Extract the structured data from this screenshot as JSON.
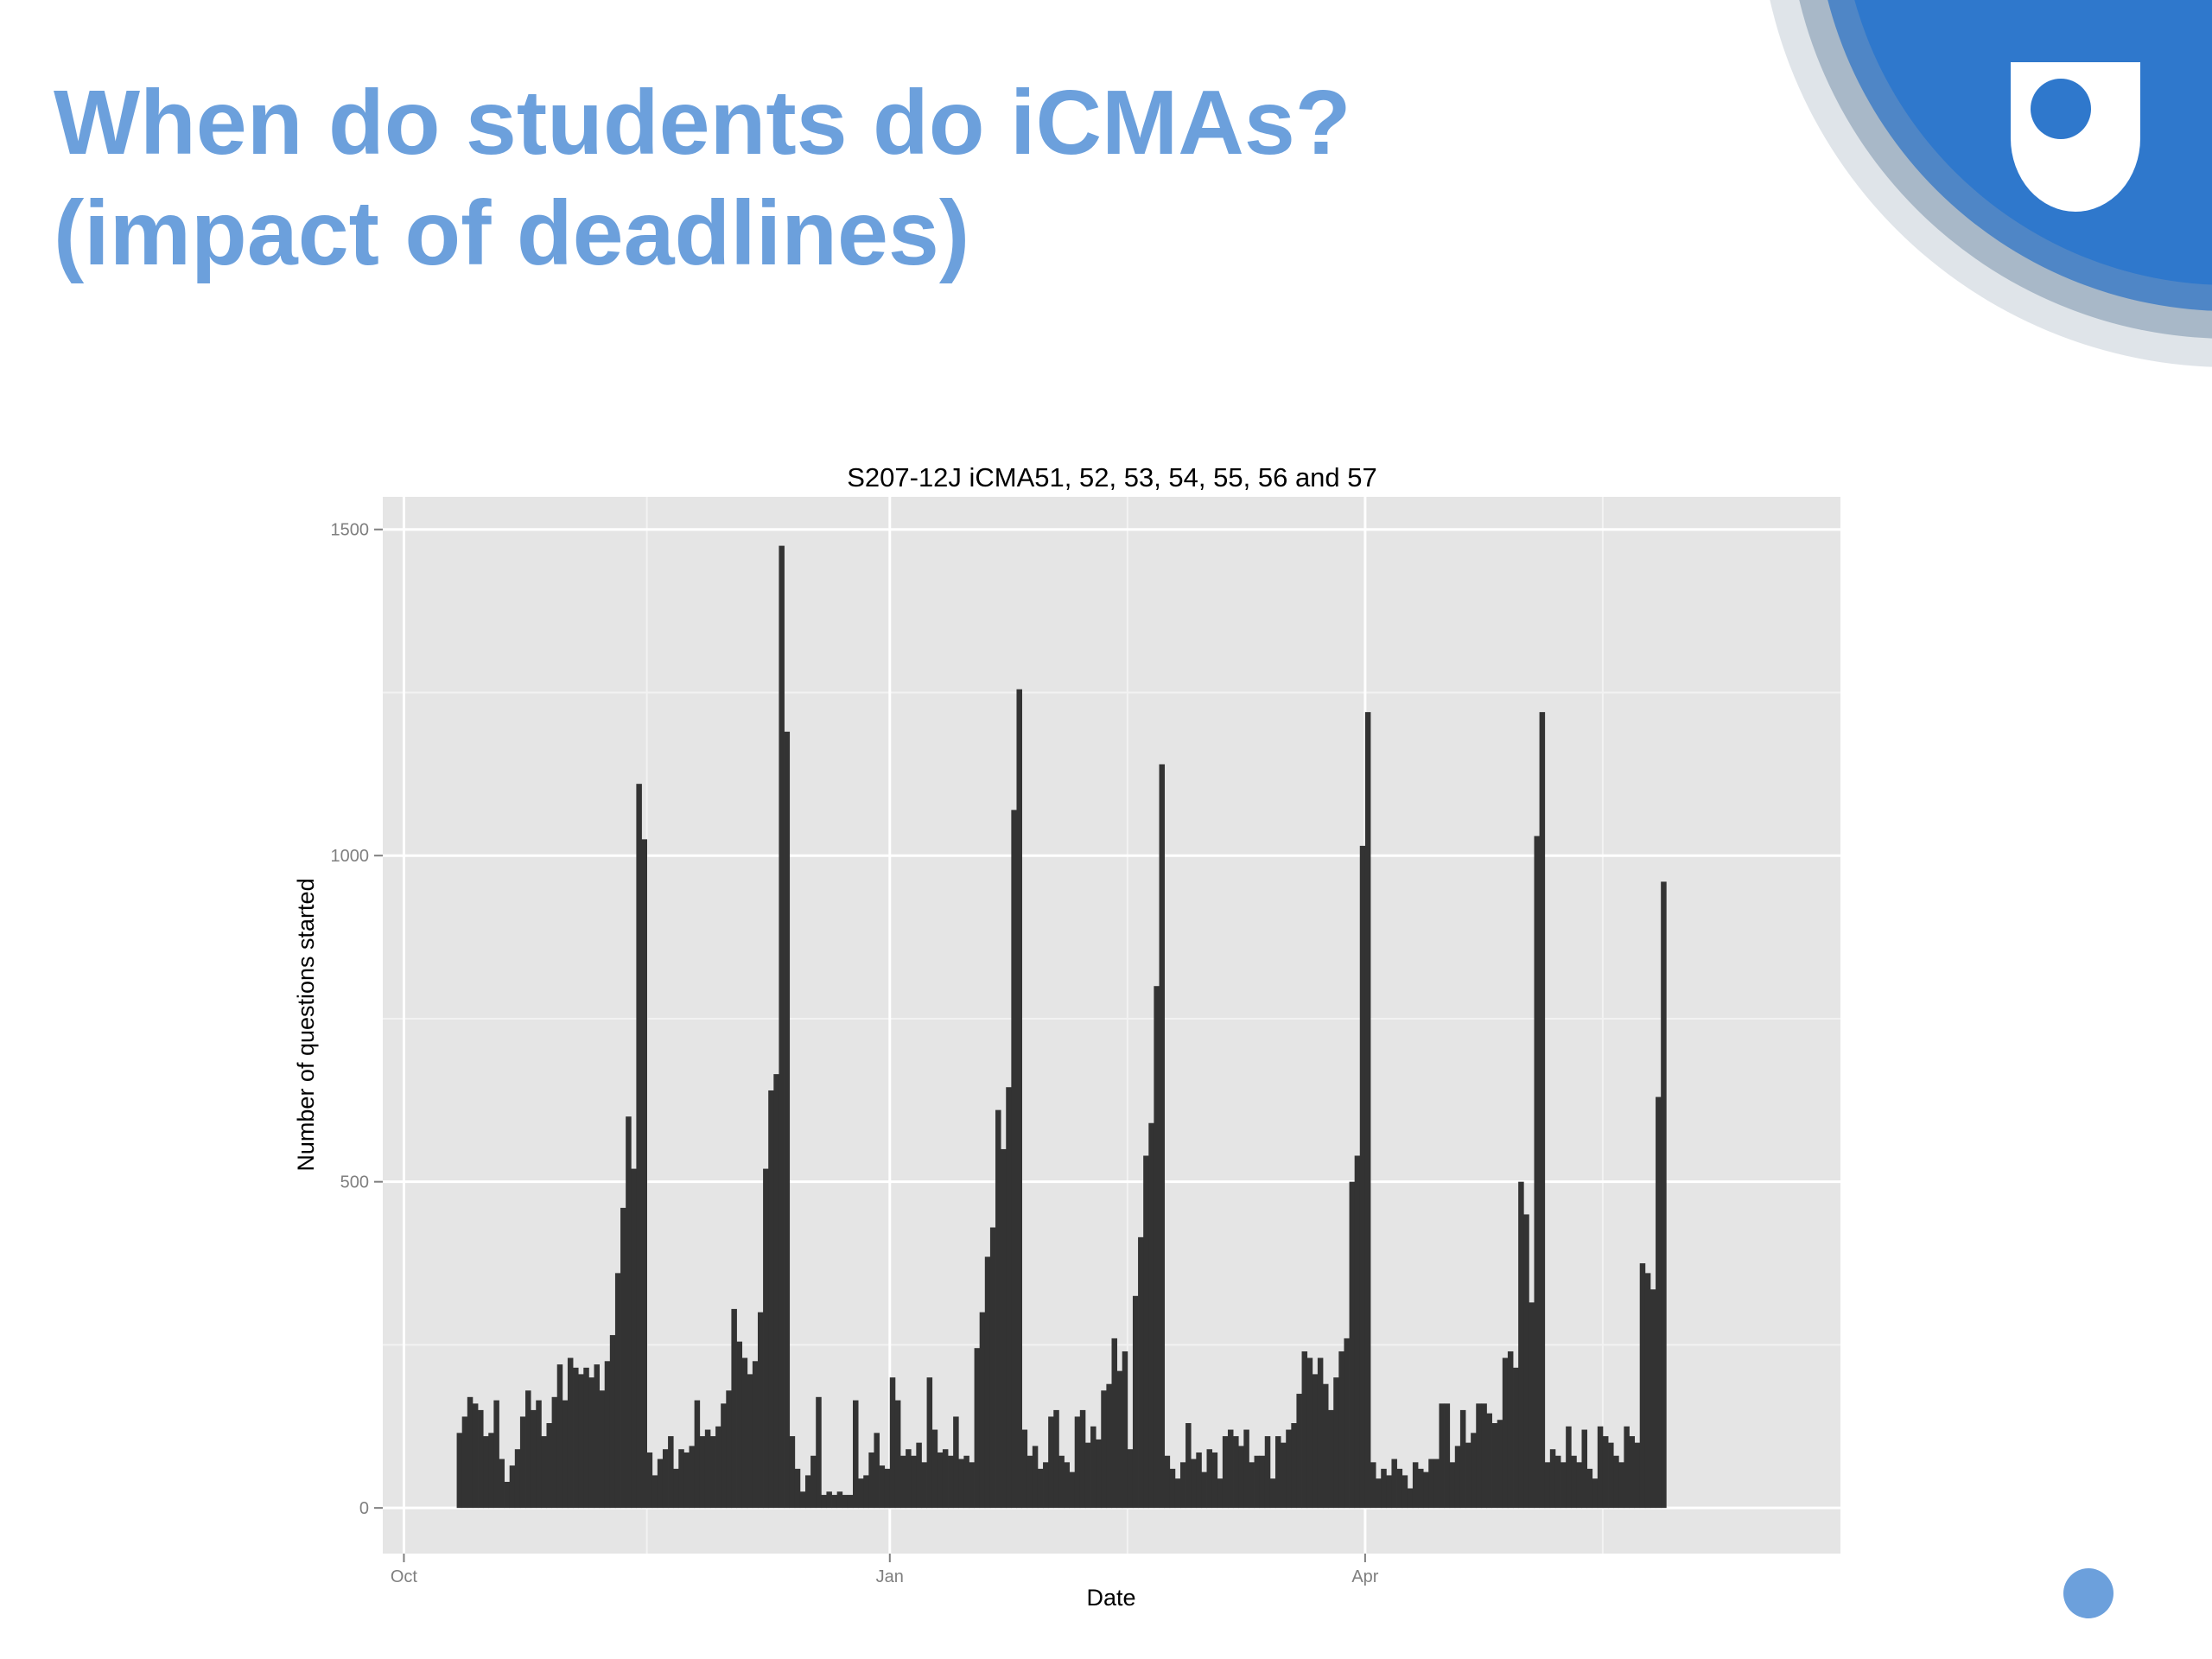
{
  "slide": {
    "title_line1": "When do students do iCMAs?",
    "title_line2": "(impact of deadlines)",
    "accent_color": "#6ca0dc",
    "logo_icon": "open-university-shield-icon"
  },
  "chart_data": {
    "type": "bar",
    "title": "S207-12J iCMA51, 52, 53, 54, 55, 56 and 57",
    "xlabel": "Date",
    "ylabel": "Number of questions started",
    "x_ticks": [
      "Oct",
      "Jan",
      "Apr"
    ],
    "y_ticks": [
      0,
      500,
      1000,
      1500
    ],
    "ylim": [
      -70,
      1550
    ],
    "x_range_days": [
      -4,
      272
    ],
    "grid": true,
    "bar_color": "#333333",
    "panel_color": "#e5e5e5",
    "x_start_day": 10,
    "values": [
      115,
      140,
      170,
      160,
      150,
      110,
      115,
      165,
      75,
      40,
      65,
      90,
      140,
      180,
      150,
      165,
      110,
      130,
      170,
      220,
      165,
      230,
      215,
      205,
      215,
      200,
      220,
      180,
      225,
      265,
      360,
      460,
      600,
      520,
      1110,
      1025,
      85,
      50,
      75,
      90,
      110,
      60,
      90,
      85,
      95,
      165,
      110,
      120,
      110,
      125,
      160,
      180,
      305,
      255,
      230,
      205,
      225,
      300,
      520,
      640,
      665,
      1475,
      1190,
      110,
      60,
      25,
      50,
      80,
      170,
      20,
      25,
      20,
      25,
      20,
      20,
      165,
      45,
      50,
      85,
      115,
      65,
      60,
      200,
      165,
      80,
      90,
      80,
      100,
      70,
      200,
      120,
      85,
      90,
      80,
      140,
      75,
      80,
      70,
      245,
      300,
      385,
      430,
      610,
      550,
      645,
      1070,
      1255,
      120,
      80,
      95,
      60,
      70,
      140,
      150,
      80,
      70,
      55,
      140,
      150,
      100,
      125,
      105,
      180,
      190,
      260,
      210,
      240,
      90,
      325,
      415,
      540,
      590,
      800,
      1140,
      80,
      60,
      45,
      70,
      130,
      75,
      85,
      55,
      90,
      85,
      45,
      110,
      120,
      110,
      95,
      120,
      70,
      80,
      80,
      110,
      45,
      110,
      100,
      120,
      130,
      175,
      240,
      230,
      205,
      230,
      190,
      150,
      200,
      240,
      260,
      500,
      540,
      1015,
      1220,
      70,
      45,
      60,
      50,
      75,
      60,
      50,
      30,
      70,
      60,
      55,
      75,
      75,
      160,
      160,
      70,
      95,
      150,
      100,
      115,
      160,
      160,
      145,
      130,
      135,
      230,
      240,
      215,
      500,
      450,
      315,
      1030,
      1220,
      70,
      90,
      80,
      70,
      125,
      80,
      70,
      120,
      60,
      45,
      125,
      110,
      100,
      80,
      70,
      125,
      110,
      100,
      375,
      360,
      335,
      630,
      960
    ]
  }
}
